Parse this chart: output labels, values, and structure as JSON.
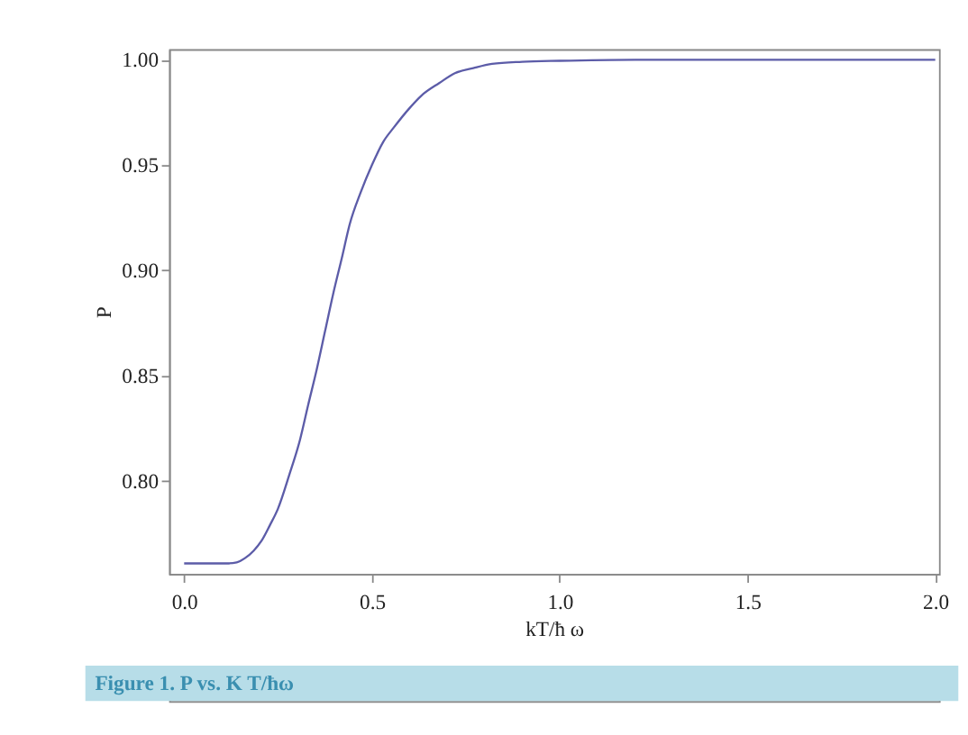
{
  "chart_data": {
    "type": "line",
    "xlabel": "kT/ħ ω",
    "ylabel": "P",
    "x": [
      0,
      0.05,
      0.1,
      0.118,
      0.14,
      0.162,
      0.185,
      0.206,
      0.228,
      0.25,
      0.28,
      0.309,
      0.33,
      0.353,
      0.375,
      0.397,
      0.42,
      0.441,
      0.47,
      0.5,
      0.53,
      0.559,
      0.6,
      0.632,
      0.68,
      0.721,
      0.77,
      0.82,
      0.9,
      1.0,
      1.2,
      1.5,
      2.0
    ],
    "series": [
      {
        "color": "#5c5ca8",
        "values": [
          0.761,
          0.761,
          0.761,
          0.761,
          0.7615,
          0.7635,
          0.767,
          0.7717,
          0.779,
          0.787,
          0.803,
          0.82,
          0.836,
          0.853,
          0.871,
          0.889,
          0.906,
          0.922,
          0.937,
          0.95,
          0.961,
          0.968,
          0.977,
          0.983,
          0.989,
          0.9936,
          0.996,
          0.998,
          0.999,
          0.9995,
          1.0,
          1.0,
          1.0
        ]
      }
    ],
    "xlim": [
      -0.04,
      2.01
    ],
    "ylim": [
      0.756,
      1.005
    ],
    "xticks": [
      {
        "value": 0,
        "label": "0.0"
      },
      0.5,
      {
        "value": 1,
        "label": "1.0"
      },
      1.5,
      {
        "value": 2,
        "label": "2.0"
      }
    ],
    "yticks": [
      {
        "value": 0.8,
        "label": "0.80"
      },
      0.85,
      {
        "value": 0.9,
        "label": "0.90"
      },
      0.95,
      {
        "value": 1.0,
        "label": "1.00"
      }
    ],
    "grid": false,
    "legend": false,
    "annotations": [
      "Figure 1. P vs. K T/ħω"
    ]
  }
}
